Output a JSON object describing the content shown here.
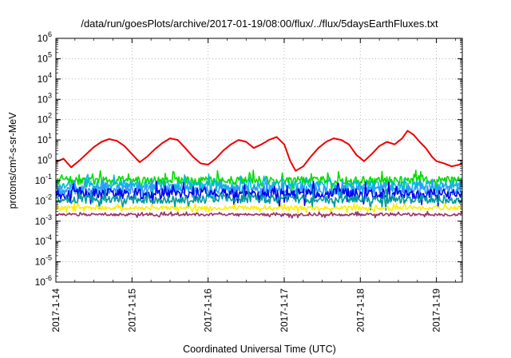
{
  "chart_data": {
    "type": "line",
    "title": "/data/run/goesPlots/archive/2017-01-19/08:00/flux/../flux/5daysEarthFluxes.txt",
    "xlabel": "Coordinated Universal Time (UTC)",
    "ylabel": "protons/cm²-s-sr-MeV",
    "yscale": "log",
    "ylim": [
      1e-06,
      1000000.0
    ],
    "xlim": [
      0,
      5.34
    ],
    "grid": true,
    "legend": "none",
    "x_tick_labels": [
      "2017-1-14",
      "2017-1-15",
      "2017-1-16",
      "2017-1-17",
      "2017-1-18",
      "2017-1-19"
    ],
    "x_tick_values": [
      0,
      1,
      2,
      3,
      4,
      5
    ],
    "y_tick_labels": [
      {
        "base": "10",
        "exp": "6"
      },
      {
        "base": "10",
        "exp": "5"
      },
      {
        "base": "10",
        "exp": "4"
      },
      {
        "base": "10",
        "exp": "3"
      },
      {
        "base": "10",
        "exp": "2"
      },
      {
        "base": "10",
        "exp": "1"
      },
      {
        "base": "10",
        "exp": "0"
      },
      {
        "base": "10",
        "exp": "-1"
      },
      {
        "base": "10",
        "exp": "-2"
      },
      {
        "base": "10",
        "exp": "-3"
      },
      {
        "base": "10",
        "exp": "-4"
      },
      {
        "base": "10",
        "exp": "-5"
      },
      {
        "base": "10",
        "exp": "-6"
      }
    ],
    "y_tick_values": [
      6,
      5,
      4,
      3,
      2,
      1,
      0,
      -1,
      -2,
      -3,
      -4,
      -5,
      -6
    ],
    "series": [
      {
        "color": "#ee0000",
        "x": [
          0.0,
          0.1,
          0.2,
          0.3,
          0.4,
          0.5,
          0.6,
          0.7,
          0.8,
          0.9,
          1.0,
          1.1,
          1.2,
          1.3,
          1.4,
          1.5,
          1.6,
          1.7,
          1.8,
          1.9,
          2.0,
          2.1,
          2.2,
          2.3,
          2.4,
          2.5,
          2.6,
          2.7,
          2.8,
          2.9,
          3.0,
          3.08,
          3.15,
          3.25,
          3.35,
          3.45,
          3.55,
          3.65,
          3.75,
          3.85,
          3.95,
          4.05,
          4.15,
          4.25,
          4.35,
          4.45,
          4.55,
          4.62,
          4.7,
          4.78,
          4.86,
          4.94,
          5.0,
          5.1,
          5.2,
          5.3,
          5.34
        ],
        "y": [
          0.8,
          1.2,
          0.45,
          0.9,
          2.0,
          4.5,
          8.0,
          11.0,
          9.0,
          5.0,
          2.0,
          0.8,
          1.5,
          3.5,
          7.0,
          12.0,
          10.0,
          4.0,
          1.5,
          0.7,
          0.6,
          1.2,
          3.0,
          6.0,
          10.0,
          8.0,
          4.0,
          6.0,
          10.0,
          14.0,
          6.0,
          0.9,
          0.3,
          0.5,
          1.5,
          4.0,
          8.0,
          12.0,
          10.0,
          6.0,
          1.8,
          0.9,
          2.0,
          5.0,
          8.0,
          6.0,
          12.0,
          28.0,
          18.0,
          8.0,
          4.0,
          1.5,
          0.9,
          0.7,
          0.5,
          0.6,
          0.7
        ]
      },
      {
        "color": "#00dd00",
        "level": 0.1,
        "spread": 1.6,
        "seed": 1
      },
      {
        "color": "#00bbdd",
        "level": 0.055,
        "spread": 1.7,
        "seed": 2
      },
      {
        "color": "#3399ff",
        "level": 0.035,
        "spread": 1.7,
        "seed": 3
      },
      {
        "color": "#0000ee",
        "level": 0.022,
        "spread": 1.8,
        "seed": 4
      },
      {
        "color": "#009999",
        "level": 0.012,
        "spread": 1.6,
        "seed": 5
      },
      {
        "color": "#ffee00",
        "level": 0.0045,
        "spread": 1.25,
        "seed": 6
      },
      {
        "color": "#993366",
        "level": 0.0021,
        "spread": 1.15,
        "seed": 7
      }
    ]
  }
}
